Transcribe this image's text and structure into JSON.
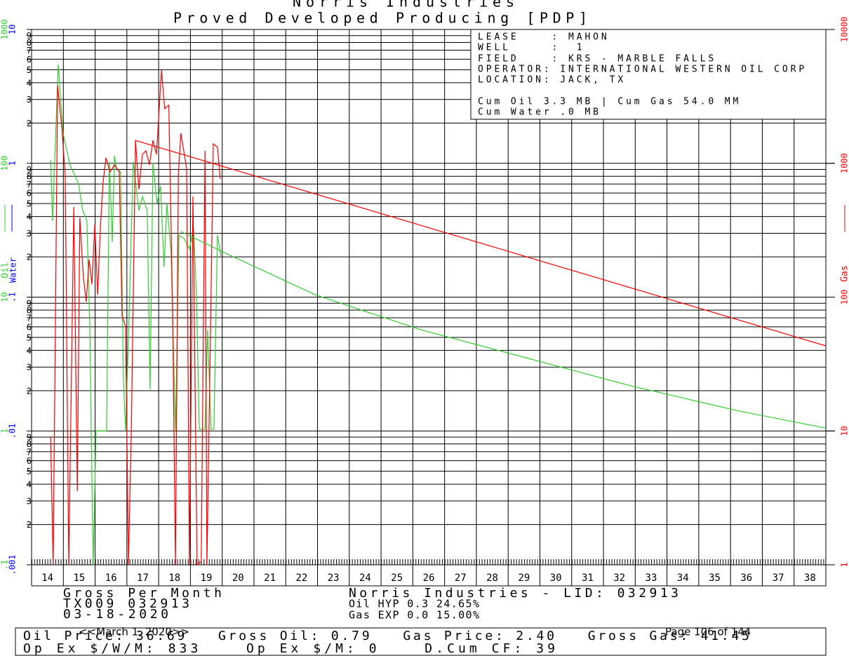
{
  "chart_data": {
    "type": "line",
    "title": "Norris Industries",
    "subtitle": "Proved Developed Producing [PDP]",
    "log_y": true,
    "grid": true,
    "xlim": [
      14,
      39
    ],
    "xticks": [
      14,
      15,
      16,
      17,
      18,
      19,
      20,
      21,
      22,
      23,
      24,
      25,
      26,
      27,
      28,
      29,
      30,
      31,
      32,
      33,
      34,
      35,
      36,
      37,
      38
    ],
    "ylim": [
      0.1,
      1000
    ],
    "yticks": [
      {
        "value": 0.1,
        "label": ".1"
      },
      1,
      10,
      100,
      1000
    ],
    "ylabel": "Oil",
    "ylabel_color": "#33cc33",
    "water_label": "Water",
    "water_color": "#0000ff",
    "water_lim": [
      0.001,
      10
    ],
    "water_ticks": [
      {
        "value": 0.001,
        "label": ".001"
      },
      {
        "value": 0.01,
        "label": ".01"
      },
      {
        "value": 0.1,
        "label": ".1"
      },
      1,
      10
    ],
    "y2lim": [
      1,
      10000
    ],
    "y2ticks": [
      1,
      10,
      100,
      1000,
      10000
    ],
    "y2label": "Gas",
    "y2label_color": "#ff0000",
    "minor_ticks": [
      2,
      3,
      4,
      5,
      6,
      7,
      8,
      9
    ],
    "series": [
      {
        "color": "#33cc33",
        "x": [
          14.6,
          14.66,
          14.84,
          14.99,
          15.21,
          15.48,
          15.61,
          15.74,
          15.83,
          15.94,
          16.03,
          16.36,
          16.45,
          16.54,
          16.61,
          16.67,
          16.8,
          16.89,
          16.96,
          17.07,
          17.2,
          17.38,
          17.49,
          17.64,
          17.73,
          17.82,
          17.95,
          18.06,
          18.17,
          18.26,
          18.39,
          18.53,
          18.64,
          18.8,
          18.97,
          19.1,
          19.19,
          19.28,
          19.46,
          19.54,
          19.65,
          19.74,
          19.85,
          19.96
        ],
        "values": [
          106,
          37.1,
          547,
          168,
          97.3,
          70.3,
          44.4,
          37.1,
          6.44,
          0.1,
          1.0,
          1.0,
          103,
          25.8,
          114,
          91.6,
          86.3,
          2.45,
          1.0,
          7.26,
          103,
          44.4,
          56.5,
          44.4,
          2.05,
          101,
          50.1,
          67.8,
          16.9,
          50.1,
          21.5,
          1.0,
          29.1,
          27.4,
          22.9,
          32.8,
          10.4,
          1.03,
          1.03,
          5.7,
          1.03,
          1.03,
          29.1,
          20.3
        ]
      },
      {
        "color": "#ff0000",
        "axis": "y2",
        "x": [
          14.6,
          14.68,
          14.82,
          14.95,
          15.06,
          15.17,
          15.33,
          15.44,
          15.52,
          15.63,
          15.72,
          15.81,
          15.9,
          15.99,
          16.08,
          16.17,
          16.25,
          16.34,
          16.47,
          16.61,
          16.76,
          16.85,
          16.96,
          17.05,
          17.14,
          17.27,
          17.38,
          17.49,
          17.6,
          17.71,
          17.82,
          17.93,
          18.09,
          18.19,
          18.32,
          18.44,
          18.53,
          18.62,
          18.7,
          18.88,
          18.97,
          19.08,
          19.21,
          19.34,
          19.46,
          19.52,
          19.63,
          19.72,
          19.85,
          19.94
        ],
        "values": [
          9.0,
          1,
          3810,
          1890,
          813,
          1,
          472,
          3.55,
          394,
          141,
          92.4,
          191,
          125,
          349,
          104,
          349,
          719,
          1100,
          863,
          973,
          863,
          72.6,
          60.5,
          1,
          10.5,
          1486,
          638,
          1167,
          1240,
          973,
          1486,
          1167,
          4970,
          2560,
          2720,
          81.9,
          1,
          813,
          1680,
          916,
          1,
          565,
          1,
          1.06,
          1240,
          1,
          50.6,
          1400,
          1320,
          764
        ]
      },
      {
        "color": "#33cc33",
        "x": [
          18.7,
          20.07,
          22.94,
          26.26,
          29.57,
          32.88,
          36.2,
          39.0
        ],
        "values": [
          30.9,
          21.5,
          10.4,
          5.7,
          3.52,
          2.17,
          1.42,
          1.05
        ]
      },
      {
        "color": "#ff0000",
        "axis": "y2",
        "x": [
          17.25,
          29.0,
          39.0
        ],
        "values": [
          1486,
          220,
          43.2
        ]
      }
    ]
  },
  "info": {
    "lines": [
      "LEASE    : MAHON",
      "WELL     :  1",
      "FIELD    : KRS - MARBLE FALLS",
      "OPERATOR: INTERNATIONAL WESTERN OIL CORP",
      "LOCATION: JACK, TX",
      "Cum Oil 3.3 MB | Cum Gas 54.0 MM",
      "Cum Water .0 MB"
    ]
  },
  "footer": {
    "left": [
      "Gross Per Month",
      "TX009 032913",
      "03-18-2020"
    ],
    "center": [
      "Norris Industries - LID: 032913",
      "Oil HYP 0.3 24.65%",
      "Gas EXP 0.0 15.00%"
    ],
    "economics": [
      "Oil Price: 36.69   Gross Oil: 0.79   Gas Price: 2.40   Gross Gas: 41.45",
      "Op Ex $/W/M: 833    Op Ex $/M: 0    D.Cum CF: 39"
    ],
    "date": "<<March 1, 2020>>",
    "page": "Page 106 of 144"
  }
}
